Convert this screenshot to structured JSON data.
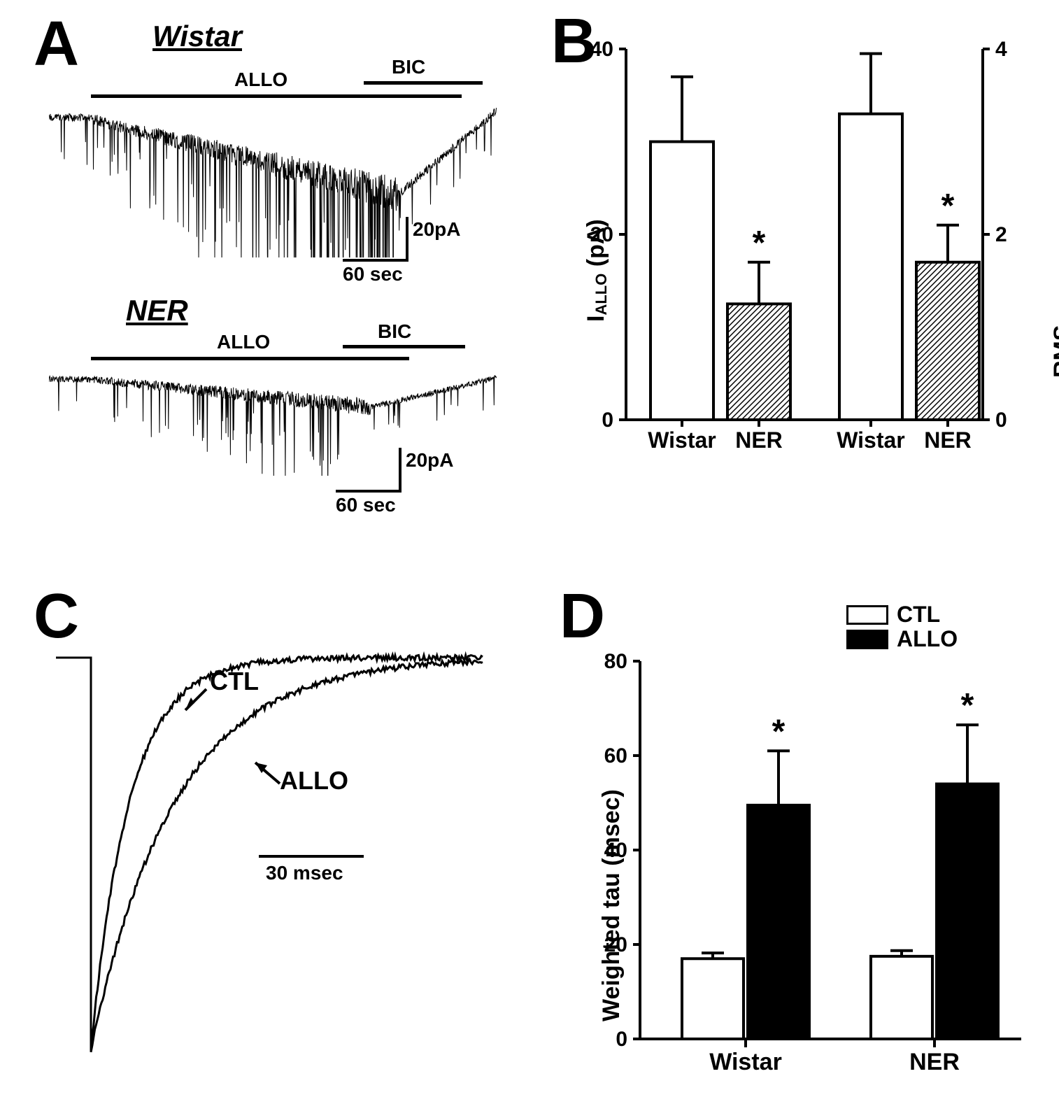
{
  "panelA": {
    "label": "A",
    "wistar": {
      "title": "Wistar",
      "drug1": "ALLO",
      "drug2": "BIC"
    },
    "ner": {
      "title": "NER",
      "drug1": "ALLO",
      "drug2": "BIC"
    },
    "scale_y": "20pA",
    "scale_x": "60 sec"
  },
  "panelB": {
    "label": "B",
    "type": "bar",
    "ylabel_left": "I_ALLO (pA)",
    "ylabel_right": "RMS change (pA)",
    "left_ticks": [
      "0",
      "20",
      "40"
    ],
    "right_ticks": [
      "0",
      "2",
      "4"
    ],
    "left_ylim": [
      0,
      40
    ],
    "right_ylim": [
      0,
      4
    ],
    "categories": [
      "Wistar",
      "NER",
      "Wistar",
      "NER"
    ],
    "values": [
      30.0,
      12.5,
      33.0,
      17.0
    ],
    "errors": [
      7.0,
      4.5,
      6.5,
      4.0
    ],
    "value_scale": [
      40,
      40,
      40,
      40
    ],
    "fills": [
      "white",
      "hatch",
      "white",
      "hatch"
    ],
    "sig": [
      false,
      true,
      false,
      true
    ],
    "colors": {
      "stroke": "#000000",
      "bg": "#ffffff",
      "hatch": "#000000"
    }
  },
  "panelC": {
    "label": "C",
    "trace1": "CTL",
    "trace2": "ALLO",
    "scale_x": "30 msec"
  },
  "panelD": {
    "label": "D",
    "type": "bar-grouped",
    "ylabel": "Weighted tau (msec)",
    "yticks": [
      "0",
      "20",
      "40",
      "60",
      "80"
    ],
    "ylim": [
      0,
      80
    ],
    "groups": [
      "Wistar",
      "NER"
    ],
    "series": [
      "CTL",
      "ALLO"
    ],
    "values": {
      "Wistar": [
        17,
        49.5
      ],
      "NER": [
        17.5,
        54
      ]
    },
    "errors": {
      "Wistar": [
        1.2,
        11.5
      ],
      "NER": [
        1.2,
        12.5
      ]
    },
    "fills": [
      "white",
      "black"
    ],
    "sig": {
      "Wistar": [
        false,
        true
      ],
      "NER": [
        false,
        true
      ]
    },
    "legend": {
      "CTL": "CTL",
      "ALLO": "ALLO"
    },
    "colors": {
      "ctl_fill": "#ffffff",
      "allo_fill": "#000000",
      "stroke": "#000000"
    }
  }
}
